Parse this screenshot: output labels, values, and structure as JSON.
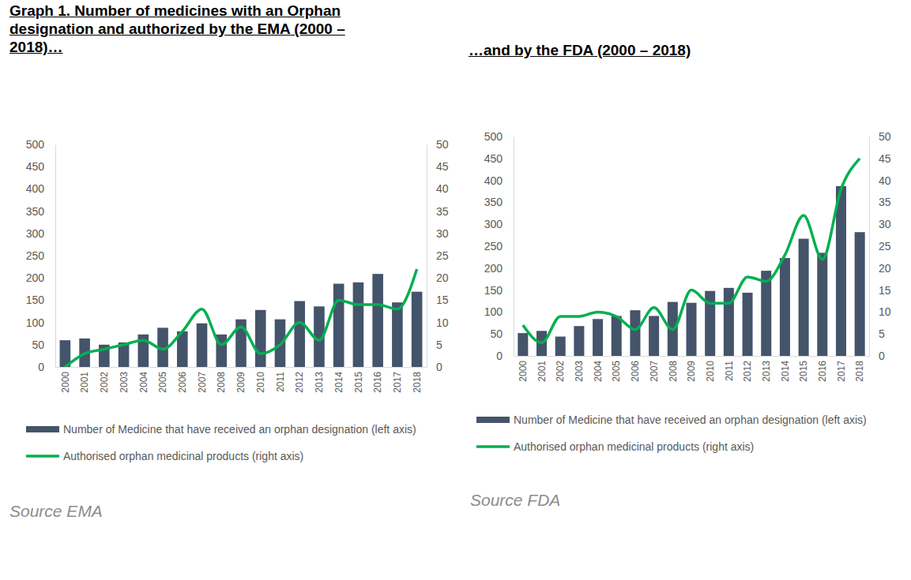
{
  "chart_data": [
    {
      "type": "bar",
      "title": "Graph 1. Number of medicines with an Orphan designation and authorized by the EMA (2000 – 2018)…",
      "source": "Source EMA",
      "categories": [
        "2000",
        "2001",
        "2002",
        "2003",
        "2004",
        "2005",
        "2006",
        "2007",
        "2008",
        "2009",
        "2010",
        "2011",
        "2012",
        "2013",
        "2014",
        "2015",
        "2016",
        "2017",
        "2018"
      ],
      "series": [
        {
          "name": "Number of Medicine that have received an orphan designation (left axis)",
          "type": "bar",
          "color": "#44546a",
          "values": [
            60,
            64,
            50,
            55,
            73,
            88,
            80,
            98,
            73,
            107,
            128,
            107,
            148,
            136,
            187,
            190,
            209,
            145,
            169
          ]
        },
        {
          "name": "Authorised orphan medicinal products (right axis)",
          "type": "line",
          "axis": "y2",
          "color": "#00b050",
          "values": [
            0,
            3,
            4,
            5,
            6,
            4,
            8,
            13,
            5,
            9,
            3,
            5,
            10,
            6,
            15,
            14,
            14,
            13,
            22
          ]
        }
      ],
      "ylim": [
        0,
        500
      ],
      "yticks": [
        0,
        50,
        100,
        150,
        200,
        250,
        300,
        350,
        400,
        450,
        500
      ],
      "y2lim": [
        0,
        50
      ],
      "y2ticks": [
        0,
        5,
        10,
        15,
        20,
        25,
        30,
        35,
        40,
        45,
        50
      ],
      "grid": false,
      "legend": "bottom"
    },
    {
      "type": "bar",
      "title": "…and by the FDA (2000 – 2018)",
      "source": "Source FDA",
      "categories": [
        "2000",
        "2001",
        "2002",
        "2003",
        "2004",
        "2005",
        "2006",
        "2007",
        "2008",
        "2009",
        "2010",
        "2011",
        "2012",
        "2013",
        "2014",
        "2015",
        "2016",
        "2017",
        "2018"
      ],
      "series": [
        {
          "name": "Number of Medicine that have received an orphan designation (left axis)",
          "type": "bar",
          "color": "#44546a",
          "values": [
            52,
            57,
            44,
            68,
            84,
            91,
            104,
            91,
            123,
            121,
            148,
            155,
            144,
            194,
            223,
            267,
            235,
            387,
            282
          ]
        },
        {
          "name": "Authorised orphan medicinal products (right axis)",
          "type": "line",
          "axis": "y2",
          "color": "#00b050",
          "values": [
            7,
            3,
            9,
            9,
            10,
            9,
            6,
            11,
            6,
            15,
            12,
            12,
            18,
            17,
            23,
            32,
            22,
            38,
            45
          ]
        }
      ],
      "ylim": [
        0,
        500
      ],
      "yticks": [
        0,
        50,
        100,
        150,
        200,
        250,
        300,
        350,
        400,
        450,
        500
      ],
      "y2lim": [
        0,
        50
      ],
      "y2ticks": [
        0,
        5,
        10,
        15,
        20,
        25,
        30,
        35,
        40,
        45,
        50
      ],
      "grid": false,
      "legend": "bottom"
    }
  ]
}
